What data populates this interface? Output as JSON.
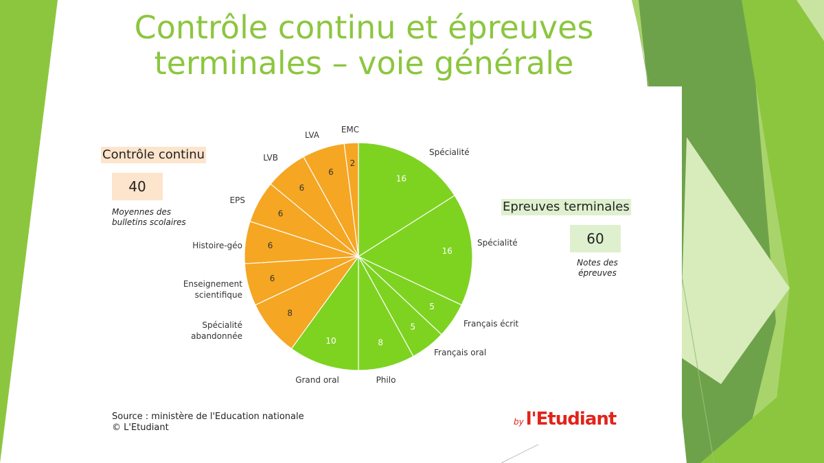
{
  "slide": {
    "title_line1": "Contrôle continu et épreuves",
    "title_line2": "terminales – voie générale"
  },
  "colors": {
    "green_series": "#7ed321",
    "orange_series": "#f5a623",
    "title_color": "#8cc63f",
    "controle_bg": "#fde4cc",
    "epreuves_bg": "#dff0cf",
    "logo_red": "#e2231a"
  },
  "controle_continu": {
    "title": "Contrôle continu",
    "total": "40",
    "note_line1": "Moyennes des",
    "note_line2": "bulletins scolaires"
  },
  "epreuves_terminales": {
    "title": "Epreuves terminales",
    "total": "60",
    "note_line1": "Notes des",
    "note_line2": "épreuves"
  },
  "source": {
    "line1": "Source : ministère de l'Education nationale",
    "line2": "© L'Etudiant"
  },
  "logo": {
    "by": "by",
    "name": "l'Etudiant"
  },
  "chart_data": {
    "type": "pie",
    "title": "",
    "start": "12 o'clock",
    "direction": "clockwise",
    "slices": [
      {
        "label": "Spécialité",
        "value": 16,
        "group": "Epreuves terminales",
        "color": "#7ed321"
      },
      {
        "label": "Spécialité",
        "value": 16,
        "group": "Epreuves terminales",
        "color": "#7ed321"
      },
      {
        "label": "Français écrit",
        "value": 5,
        "group": "Epreuves terminales",
        "color": "#7ed321"
      },
      {
        "label": "Français oral",
        "value": 5,
        "group": "Epreuves terminales",
        "color": "#7ed321"
      },
      {
        "label": "Philo",
        "value": 8,
        "group": "Epreuves terminales",
        "color": "#7ed321"
      },
      {
        "label": "Grand oral",
        "value": 10,
        "group": "Epreuves terminales",
        "color": "#7ed321"
      },
      {
        "label": "Spécialité abandonnée",
        "value": 8,
        "group": "Contrôle continu",
        "color": "#f5a623"
      },
      {
        "label": "Enseignement scientifique",
        "value": 6,
        "group": "Contrôle continu",
        "color": "#f5a623"
      },
      {
        "label": "Histoire-géo",
        "value": 6,
        "group": "Contrôle continu",
        "color": "#f5a623"
      },
      {
        "label": "EPS",
        "value": 6,
        "group": "Contrôle continu",
        "color": "#f5a623"
      },
      {
        "label": "LVB",
        "value": 6,
        "group": "Contrôle continu",
        "color": "#f5a623"
      },
      {
        "label": "LVA",
        "value": 6,
        "group": "Contrôle continu",
        "color": "#f5a623"
      },
      {
        "label": "EMC",
        "value": 2,
        "group": "Contrôle continu",
        "color": "#f5a623"
      }
    ]
  }
}
